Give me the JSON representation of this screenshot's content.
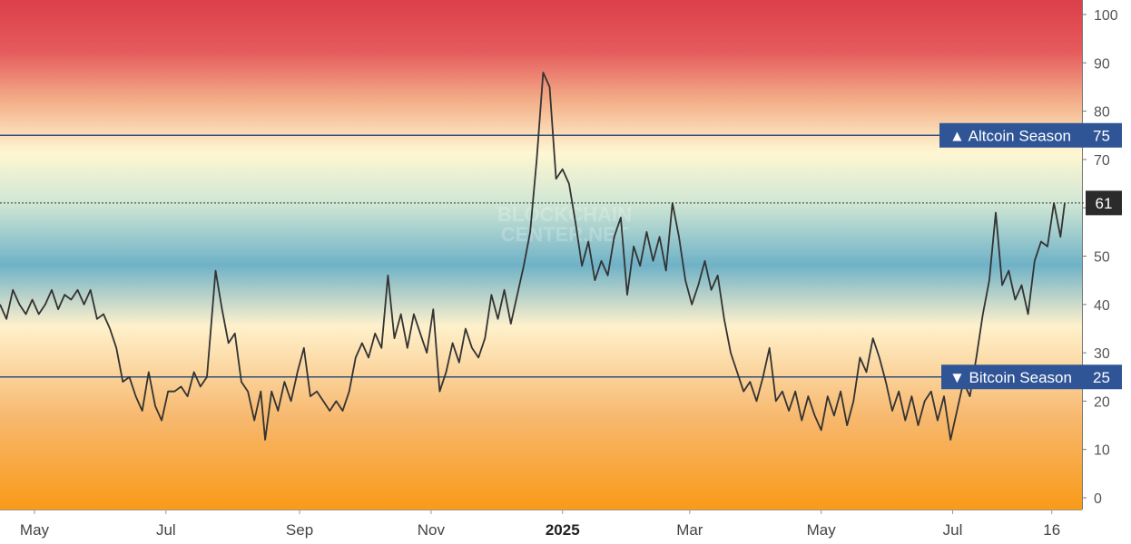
{
  "watermark": [
    "BLOCKCHAIN",
    "CENTER.NET"
  ],
  "colors": {
    "line": "#333333",
    "band_label_bg": "#2f5597",
    "current_label_bg": "#2b2b2b",
    "gradient": [
      "#dc3f4a",
      "#f0a276",
      "#fff7d2",
      "#6fb2c7",
      "#fff1cc",
      "#f6b56a",
      "#f99a18"
    ]
  },
  "thresholds": {
    "altcoin": {
      "label": "▲ Altcoin Season",
      "value": 75,
      "value_label": "75"
    },
    "bitcoin": {
      "label": "▼ Bitcoin Season",
      "value": 25,
      "value_label": "25"
    }
  },
  "current": {
    "value": 61,
    "label": "61"
  },
  "chart_data": {
    "type": "line",
    "title": "",
    "xlabel": "",
    "ylabel": "",
    "ylim": [
      0,
      100
    ],
    "y_ticks": [
      "0",
      "10",
      "20",
      "30",
      "40",
      "50",
      "60",
      "70",
      "80",
      "90",
      "100"
    ],
    "x_ticks": [
      {
        "label": "May",
        "date": "2024-05-01",
        "bold": false
      },
      {
        "label": "Jul",
        "date": "2024-07-01",
        "bold": false
      },
      {
        "label": "Sep",
        "date": "2024-09-01",
        "bold": false
      },
      {
        "label": "Nov",
        "date": "2024-11-01",
        "bold": false
      },
      {
        "label": "2025",
        "date": "2025-01-01",
        "bold": true
      },
      {
        "label": "Mar",
        "date": "2025-03-01",
        "bold": false
      },
      {
        "label": "May",
        "date": "2025-05-01",
        "bold": false
      },
      {
        "label": "Jul",
        "date": "2025-07-01",
        "bold": false
      },
      {
        "label": "16",
        "date": "2025-08-16",
        "bold": false
      }
    ],
    "x_range": [
      "2024-04-15",
      "2025-08-30"
    ],
    "series": [
      {
        "points": [
          [
            "2024-04-15",
            40
          ],
          [
            "2024-04-18",
            37
          ],
          [
            "2024-04-21",
            43
          ],
          [
            "2024-04-24",
            40
          ],
          [
            "2024-04-27",
            38
          ],
          [
            "2024-04-30",
            41
          ],
          [
            "2024-05-03",
            38
          ],
          [
            "2024-05-06",
            40
          ],
          [
            "2024-05-09",
            43
          ],
          [
            "2024-05-12",
            39
          ],
          [
            "2024-05-15",
            42
          ],
          [
            "2024-05-18",
            41
          ],
          [
            "2024-05-21",
            43
          ],
          [
            "2024-05-24",
            40
          ],
          [
            "2024-05-27",
            43
          ],
          [
            "2024-05-30",
            37
          ],
          [
            "2024-06-02",
            38
          ],
          [
            "2024-06-05",
            35
          ],
          [
            "2024-06-08",
            31
          ],
          [
            "2024-06-11",
            24
          ],
          [
            "2024-06-14",
            25
          ],
          [
            "2024-06-17",
            21
          ],
          [
            "2024-06-20",
            18
          ],
          [
            "2024-06-23",
            26
          ],
          [
            "2024-06-26",
            19
          ],
          [
            "2024-06-29",
            16
          ],
          [
            "2024-07-02",
            22
          ],
          [
            "2024-07-05",
            22
          ],
          [
            "2024-07-08",
            23
          ],
          [
            "2024-07-11",
            21
          ],
          [
            "2024-07-14",
            26
          ],
          [
            "2024-07-17",
            23
          ],
          [
            "2024-07-20",
            25
          ],
          [
            "2024-07-24",
            47
          ],
          [
            "2024-07-27",
            39
          ],
          [
            "2024-07-30",
            32
          ],
          [
            "2024-08-02",
            34
          ],
          [
            "2024-08-05",
            24
          ],
          [
            "2024-08-08",
            22
          ],
          [
            "2024-08-11",
            16
          ],
          [
            "2024-08-14",
            22
          ],
          [
            "2024-08-16",
            12
          ],
          [
            "2024-08-19",
            22
          ],
          [
            "2024-08-22",
            18
          ],
          [
            "2024-08-25",
            24
          ],
          [
            "2024-08-28",
            20
          ],
          [
            "2024-08-31",
            26
          ],
          [
            "2024-09-03",
            31
          ],
          [
            "2024-09-06",
            21
          ],
          [
            "2024-09-09",
            22
          ],
          [
            "2024-09-12",
            20
          ],
          [
            "2024-09-15",
            18
          ],
          [
            "2024-09-18",
            20
          ],
          [
            "2024-09-21",
            18
          ],
          [
            "2024-09-24",
            22
          ],
          [
            "2024-09-27",
            29
          ],
          [
            "2024-09-30",
            32
          ],
          [
            "2024-10-03",
            29
          ],
          [
            "2024-10-06",
            34
          ],
          [
            "2024-10-09",
            31
          ],
          [
            "2024-10-12",
            46
          ],
          [
            "2024-10-15",
            33
          ],
          [
            "2024-10-18",
            38
          ],
          [
            "2024-10-21",
            31
          ],
          [
            "2024-10-24",
            38
          ],
          [
            "2024-10-27",
            34
          ],
          [
            "2024-10-30",
            30
          ],
          [
            "2024-11-02",
            39
          ],
          [
            "2024-11-05",
            22
          ],
          [
            "2024-11-08",
            26
          ],
          [
            "2024-11-11",
            32
          ],
          [
            "2024-11-14",
            28
          ],
          [
            "2024-11-17",
            35
          ],
          [
            "2024-11-20",
            31
          ],
          [
            "2024-11-23",
            29
          ],
          [
            "2024-11-26",
            33
          ],
          [
            "2024-11-29",
            42
          ],
          [
            "2024-12-02",
            37
          ],
          [
            "2024-12-05",
            43
          ],
          [
            "2024-12-08",
            36
          ],
          [
            "2024-12-11",
            42
          ],
          [
            "2024-12-14",
            48
          ],
          [
            "2024-12-17",
            55
          ],
          [
            "2024-12-20",
            70
          ],
          [
            "2024-12-23",
            88
          ],
          [
            "2024-12-26",
            85
          ],
          [
            "2024-12-29",
            66
          ],
          [
            "2025-01-01",
            68
          ],
          [
            "2025-01-04",
            65
          ],
          [
            "2025-01-07",
            57
          ],
          [
            "2025-01-10",
            48
          ],
          [
            "2025-01-13",
            53
          ],
          [
            "2025-01-16",
            45
          ],
          [
            "2025-01-19",
            49
          ],
          [
            "2025-01-22",
            46
          ],
          [
            "2025-01-25",
            54
          ],
          [
            "2025-01-28",
            58
          ],
          [
            "2025-01-31",
            42
          ],
          [
            "2025-02-03",
            52
          ],
          [
            "2025-02-06",
            48
          ],
          [
            "2025-02-09",
            55
          ],
          [
            "2025-02-12",
            49
          ],
          [
            "2025-02-15",
            54
          ],
          [
            "2025-02-18",
            47
          ],
          [
            "2025-02-21",
            61
          ],
          [
            "2025-02-24",
            54
          ],
          [
            "2025-02-27",
            45
          ],
          [
            "2025-03-02",
            40
          ],
          [
            "2025-03-05",
            44
          ],
          [
            "2025-03-08",
            49
          ],
          [
            "2025-03-11",
            43
          ],
          [
            "2025-03-14",
            46
          ],
          [
            "2025-03-17",
            37
          ],
          [
            "2025-03-20",
            30
          ],
          [
            "2025-03-23",
            26
          ],
          [
            "2025-03-26",
            22
          ],
          [
            "2025-03-29",
            24
          ],
          [
            "2025-04-01",
            20
          ],
          [
            "2025-04-04",
            25
          ],
          [
            "2025-04-07",
            31
          ],
          [
            "2025-04-10",
            20
          ],
          [
            "2025-04-13",
            22
          ],
          [
            "2025-04-16",
            18
          ],
          [
            "2025-04-19",
            22
          ],
          [
            "2025-04-22",
            16
          ],
          [
            "2025-04-25",
            21
          ],
          [
            "2025-04-28",
            17
          ],
          [
            "2025-05-01",
            14
          ],
          [
            "2025-05-04",
            21
          ],
          [
            "2025-05-07",
            17
          ],
          [
            "2025-05-10",
            22
          ],
          [
            "2025-05-13",
            15
          ],
          [
            "2025-05-16",
            20
          ],
          [
            "2025-05-19",
            29
          ],
          [
            "2025-05-22",
            26
          ],
          [
            "2025-05-25",
            33
          ],
          [
            "2025-05-28",
            29
          ],
          [
            "2025-05-31",
            24
          ],
          [
            "2025-06-03",
            18
          ],
          [
            "2025-06-06",
            22
          ],
          [
            "2025-06-09",
            16
          ],
          [
            "2025-06-12",
            21
          ],
          [
            "2025-06-15",
            15
          ],
          [
            "2025-06-18",
            20
          ],
          [
            "2025-06-21",
            22
          ],
          [
            "2025-06-24",
            16
          ],
          [
            "2025-06-27",
            21
          ],
          [
            "2025-06-30",
            12
          ],
          [
            "2025-07-03",
            18
          ],
          [
            "2025-07-06",
            24
          ],
          [
            "2025-07-09",
            21
          ],
          [
            "2025-07-12",
            29
          ],
          [
            "2025-07-15",
            38
          ],
          [
            "2025-07-18",
            45
          ],
          [
            "2025-07-21",
            59
          ],
          [
            "2025-07-24",
            44
          ],
          [
            "2025-07-27",
            47
          ],
          [
            "2025-07-30",
            41
          ],
          [
            "2025-08-02",
            44
          ],
          [
            "2025-08-05",
            38
          ],
          [
            "2025-08-08",
            49
          ],
          [
            "2025-08-11",
            53
          ],
          [
            "2025-08-14",
            52
          ],
          [
            "2025-08-17",
            61
          ],
          [
            "2025-08-20",
            54
          ],
          [
            "2025-08-22",
            61
          ]
        ]
      }
    ]
  }
}
